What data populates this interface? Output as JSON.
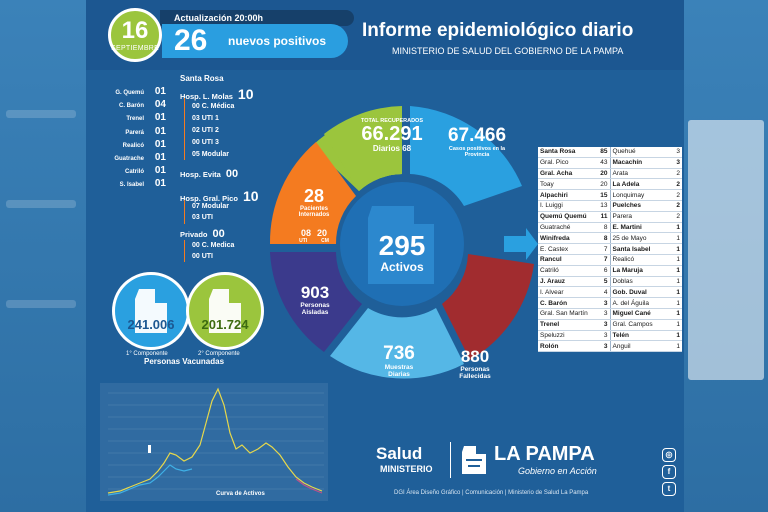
{
  "header": {
    "day": "16",
    "month": "SEPTIEMBRE",
    "update_label": "Actualización 20:00h",
    "new_positive_count": "26",
    "new_positive_label": "nuevos positivos",
    "title": "Informe epidemiológico diario",
    "subtitle": "MINISTERIO DE SALUD DEL GOBIERNO DE LA PAMPA"
  },
  "localities": [
    {
      "name": "G. Quemú",
      "value": "01"
    },
    {
      "name": "C. Barón",
      "value": "04"
    },
    {
      "name": "Trenel",
      "value": "01"
    },
    {
      "name": "Parerá",
      "value": "01"
    },
    {
      "name": "Realicó",
      "value": "01"
    },
    {
      "name": "Guatrache",
      "value": "01"
    },
    {
      "name": "Catriló",
      "value": "01"
    },
    {
      "name": "S. Isabel",
      "value": "01"
    }
  ],
  "hospitals": {
    "city": "Santa Rosa",
    "molas": {
      "label": "Hosp. L. Molas",
      "value": "10"
    },
    "molas_sub": [
      "00 C. Médica",
      "03 UTI 1",
      "02 UTI 2",
      "00 UTI 3",
      "05 Modular"
    ],
    "evita": {
      "label": "Hosp. Evita",
      "value": "00"
    },
    "pico": {
      "label": "Hosp. Gral. Pico",
      "value": "10"
    },
    "pico_sub": [
      "07 Modular",
      "03 UTI"
    ],
    "privado": {
      "label": "Privado",
      "value": "00"
    },
    "privado_sub": [
      "00 C. Medica",
      "00 UTI"
    ]
  },
  "vaccination": {
    "first": "241.006",
    "second": "201.724",
    "first_label": "1° Componente",
    "second_label": "2° Componente",
    "label": "Personas Vacunadas"
  },
  "wheel": {
    "recovered_label": "TOTAL RECUPERADOS",
    "recovered": "66.291",
    "recovered_daily_label": "Diarios",
    "recovered_daily": "68",
    "positive_total": "67.466",
    "positive_label": "Casos positivos en la Provincia",
    "interned": "28",
    "interned_label": "Pacientes Internados",
    "uti": "08",
    "uti_label": "UTI",
    "cm": "20",
    "cm_label": "CM",
    "active": "295",
    "active_label": "Activos",
    "isolated": "903",
    "isolated_label": "Personas Aisladas",
    "samples": "736",
    "samples_label": "Muestras Diarias",
    "deceased": "880",
    "deceased_label": "Personas Fallecidas"
  },
  "table": [
    [
      {
        "name": "Santa Rosa",
        "value": "85",
        "bold": true
      },
      {
        "name": "Quehué",
        "value": "3",
        "bold": false
      }
    ],
    [
      {
        "name": "Gral. Pico",
        "value": "43",
        "bold": false
      },
      {
        "name": "Macachín",
        "value": "3",
        "bold": true
      }
    ],
    [
      {
        "name": "Gral. Acha",
        "value": "20",
        "bold": true
      },
      {
        "name": "Arata",
        "value": "2",
        "bold": false
      }
    ],
    [
      {
        "name": "Toay",
        "value": "20",
        "bold": false
      },
      {
        "name": "La Adela",
        "value": "2",
        "bold": true
      }
    ],
    [
      {
        "name": "Alpachiri",
        "value": "15",
        "bold": true
      },
      {
        "name": "Lonquimay",
        "value": "2",
        "bold": false
      }
    ],
    [
      {
        "name": "I. Luiggi",
        "value": "13",
        "bold": false
      },
      {
        "name": "Puelches",
        "value": "2",
        "bold": true
      }
    ],
    [
      {
        "name": "Quemú Quemú",
        "value": "11",
        "bold": true
      },
      {
        "name": "Parera",
        "value": "2",
        "bold": false
      }
    ],
    [
      {
        "name": "Guatraché",
        "value": "8",
        "bold": false
      },
      {
        "name": "E. Martini",
        "value": "1",
        "bold": true
      }
    ],
    [
      {
        "name": "Winifreda",
        "value": "8",
        "bold": true
      },
      {
        "name": "25 de Mayo",
        "value": "1",
        "bold": false
      }
    ],
    [
      {
        "name": "E. Castex",
        "value": "7",
        "bold": false
      },
      {
        "name": "Santa Isabel",
        "value": "1",
        "bold": true
      }
    ],
    [
      {
        "name": "Rancul",
        "value": "7",
        "bold": true
      },
      {
        "name": "Realicó",
        "value": "1",
        "bold": false
      }
    ],
    [
      {
        "name": "Catriló",
        "value": "6",
        "bold": false
      },
      {
        "name": "La Maruja",
        "value": "1",
        "bold": true
      }
    ],
    [
      {
        "name": "J. Arauz",
        "value": "5",
        "bold": true
      },
      {
        "name": "Doblas",
        "value": "1",
        "bold": false
      }
    ],
    [
      {
        "name": "I. Alvear",
        "value": "4",
        "bold": false
      },
      {
        "name": "Gob. Duval",
        "value": "1",
        "bold": true
      }
    ],
    [
      {
        "name": "C. Barón",
        "value": "3",
        "bold": true
      },
      {
        "name": "A. del Águila",
        "value": "1",
        "bold": false
      }
    ],
    [
      {
        "name": "Gral. San Martín",
        "value": "3",
        "bold": false
      },
      {
        "name": "Miguel Cané",
        "value": "1",
        "bold": true
      }
    ],
    [
      {
        "name": "Trenel",
        "value": "3",
        "bold": true
      },
      {
        "name": "Gral. Campos",
        "value": "1",
        "bold": false
      }
    ],
    [
      {
        "name": "Speluzzi",
        "value": "3",
        "bold": false
      },
      {
        "name": "Telén",
        "value": "1",
        "bold": true
      }
    ],
    [
      {
        "name": "Rolón",
        "value": "3",
        "bold": true
      },
      {
        "name": "Anguil",
        "value": "1",
        "bold": false
      }
    ]
  ],
  "chart_caption": "Curva de Activos",
  "footer": {
    "salud": "Salud",
    "ministerio": "MINISTERIO",
    "la_pampa": "LA PAMPA",
    "gobierno": "Gobierno en Acción",
    "credits": "DGI Área Diseño Gráfico  |  Comunicación  |  Ministerio de Salud La Pampa"
  },
  "icons": [
    "instagram-icon",
    "facebook-icon",
    "twitter-icon"
  ],
  "colors": {
    "green": "#9bc53d",
    "blue": "#2aa0e0",
    "orange": "#f47b20",
    "purple": "#3b3a8c",
    "red": "#a12c2f",
    "light_blue": "#55b7e6"
  }
}
